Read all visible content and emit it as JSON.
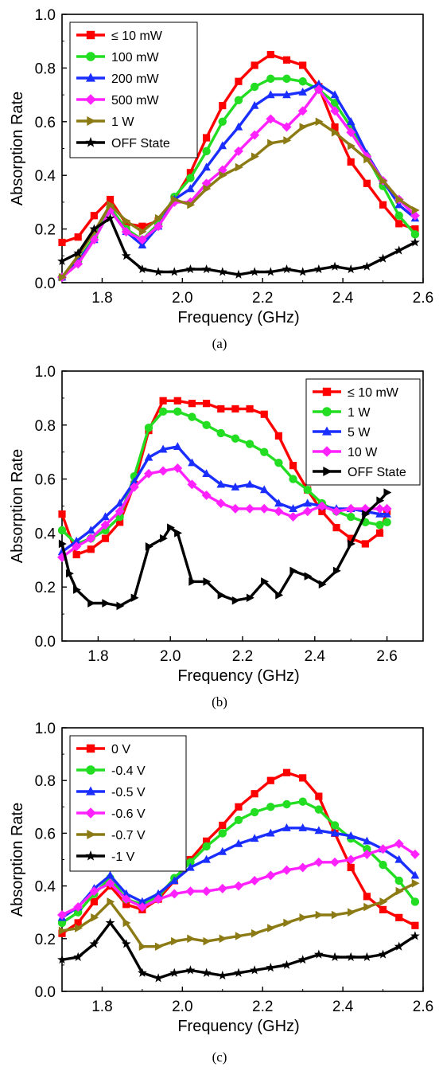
{
  "chart_data": [
    {
      "type": "line",
      "caption": "(a)",
      "xlabel": "Frequency (GHz)",
      "ylabel": "Absorption Rate",
      "xlim": [
        1.7,
        2.6
      ],
      "ylim": [
        0.0,
        1.0
      ],
      "xticks": [
        "1.8",
        "2.0",
        "2.2",
        "2.4",
        "2.6"
      ],
      "yticks": [
        "0.0",
        "0.2",
        "0.4",
        "0.6",
        "0.8",
        "1.0"
      ],
      "legend_position": "top-left",
      "series": [
        {
          "name": "≤ 10 mW",
          "color": "#ff0000",
          "marker": "square",
          "x": [
            1.7,
            1.74,
            1.78,
            1.82,
            1.86,
            1.9,
            1.94,
            1.98,
            2.02,
            2.06,
            2.1,
            2.14,
            2.18,
            2.22,
            2.26,
            2.3,
            2.34,
            2.38,
            2.42,
            2.46,
            2.5,
            2.54,
            2.58
          ],
          "y": [
            0.15,
            0.17,
            0.25,
            0.31,
            0.22,
            0.21,
            0.23,
            0.31,
            0.41,
            0.54,
            0.66,
            0.75,
            0.81,
            0.85,
            0.83,
            0.81,
            0.73,
            0.58,
            0.45,
            0.37,
            0.29,
            0.22,
            0.2
          ]
        },
        {
          "name": "100 mW",
          "color": "#22dd22",
          "marker": "circle",
          "x": [
            1.7,
            1.74,
            1.78,
            1.82,
            1.86,
            1.9,
            1.94,
            1.98,
            2.02,
            2.06,
            2.1,
            2.14,
            2.18,
            2.22,
            2.26,
            2.3,
            2.34,
            2.38,
            2.42,
            2.46,
            2.5,
            2.54,
            2.58
          ],
          "y": [
            0.02,
            0.08,
            0.17,
            0.28,
            0.2,
            0.16,
            0.22,
            0.32,
            0.39,
            0.49,
            0.6,
            0.68,
            0.73,
            0.76,
            0.76,
            0.75,
            0.72,
            0.67,
            0.58,
            0.47,
            0.36,
            0.25,
            0.18
          ]
        },
        {
          "name": "200 mW",
          "color": "#1a2eff",
          "marker": "triangle",
          "x": [
            1.7,
            1.74,
            1.78,
            1.82,
            1.86,
            1.9,
            1.94,
            1.98,
            2.02,
            2.06,
            2.1,
            2.14,
            2.18,
            2.22,
            2.26,
            2.3,
            2.34,
            2.38,
            2.42,
            2.46,
            2.5,
            2.54,
            2.58
          ],
          "y": [
            0.02,
            0.08,
            0.16,
            0.27,
            0.19,
            0.14,
            0.21,
            0.31,
            0.35,
            0.43,
            0.51,
            0.58,
            0.66,
            0.7,
            0.7,
            0.71,
            0.74,
            0.7,
            0.6,
            0.48,
            0.38,
            0.29,
            0.24
          ]
        },
        {
          "name": "500 mW",
          "color": "#ff22ff",
          "marker": "diamond",
          "x": [
            1.7,
            1.74,
            1.78,
            1.82,
            1.86,
            1.9,
            1.94,
            1.98,
            2.02,
            2.06,
            2.1,
            2.14,
            2.18,
            2.22,
            2.26,
            2.3,
            2.34,
            2.38,
            2.42,
            2.46,
            2.5,
            2.54,
            2.58
          ],
          "y": [
            0.02,
            0.07,
            0.16,
            0.27,
            0.19,
            0.16,
            0.21,
            0.3,
            0.3,
            0.37,
            0.42,
            0.49,
            0.55,
            0.61,
            0.58,
            0.64,
            0.72,
            0.64,
            0.56,
            0.47,
            0.38,
            0.31,
            0.25
          ]
        },
        {
          "name": "1 W",
          "color": "#8c7a14",
          "marker": "triangle-right",
          "x": [
            1.7,
            1.74,
            1.78,
            1.82,
            1.86,
            1.9,
            1.94,
            1.98,
            2.02,
            2.06,
            2.1,
            2.14,
            2.18,
            2.22,
            2.26,
            2.3,
            2.34,
            2.38,
            2.42,
            2.46,
            2.5,
            2.54,
            2.58
          ],
          "y": [
            0.02,
            0.1,
            0.19,
            0.29,
            0.23,
            0.19,
            0.24,
            0.31,
            0.29,
            0.35,
            0.4,
            0.43,
            0.47,
            0.52,
            0.53,
            0.58,
            0.6,
            0.56,
            0.51,
            0.46,
            0.38,
            0.31,
            0.27
          ]
        },
        {
          "name": "OFF State",
          "color": "#000000",
          "marker": "star",
          "x": [
            1.7,
            1.74,
            1.78,
            1.82,
            1.86,
            1.9,
            1.94,
            1.98,
            2.02,
            2.06,
            2.1,
            2.14,
            2.18,
            2.22,
            2.26,
            2.3,
            2.34,
            2.38,
            2.42,
            2.46,
            2.5,
            2.54,
            2.58
          ],
          "y": [
            0.08,
            0.11,
            0.2,
            0.24,
            0.1,
            0.05,
            0.04,
            0.04,
            0.05,
            0.05,
            0.04,
            0.03,
            0.04,
            0.04,
            0.05,
            0.04,
            0.05,
            0.06,
            0.05,
            0.06,
            0.09,
            0.12,
            0.15
          ]
        }
      ]
    },
    {
      "type": "line",
      "caption": "(b)",
      "xlabel": "Frequency (GHz)",
      "ylabel": "Absorption Rate",
      "xlim": [
        1.7,
        2.7
      ],
      "ylim": [
        0.0,
        1.0
      ],
      "xticks": [
        "1.8",
        "2.0",
        "2.2",
        "2.4",
        "2.6"
      ],
      "yticks": [
        "0.0",
        "0.2",
        "0.4",
        "0.6",
        "0.8",
        "1.0"
      ],
      "legend_position": "top-right",
      "series": [
        {
          "name": "≤ 10 mW",
          "color": "#ff0000",
          "marker": "square",
          "x": [
            1.7,
            1.74,
            1.78,
            1.82,
            1.86,
            1.9,
            1.94,
            1.98,
            2.02,
            2.06,
            2.1,
            2.14,
            2.18,
            2.22,
            2.26,
            2.3,
            2.34,
            2.38,
            2.42,
            2.46,
            2.5,
            2.54,
            2.58,
            2.6
          ],
          "y": [
            0.47,
            0.32,
            0.34,
            0.38,
            0.44,
            0.58,
            0.78,
            0.89,
            0.89,
            0.88,
            0.88,
            0.86,
            0.86,
            0.86,
            0.84,
            0.76,
            0.65,
            0.56,
            0.48,
            0.42,
            0.38,
            0.36,
            0.4,
            0.48
          ]
        },
        {
          "name": "1 W",
          "color": "#22dd22",
          "marker": "circle",
          "x": [
            1.7,
            1.74,
            1.78,
            1.82,
            1.86,
            1.9,
            1.94,
            1.98,
            2.02,
            2.06,
            2.1,
            2.14,
            2.18,
            2.22,
            2.26,
            2.3,
            2.34,
            2.38,
            2.42,
            2.46,
            2.5,
            2.54,
            2.58,
            2.6
          ],
          "y": [
            0.41,
            0.36,
            0.38,
            0.41,
            0.46,
            0.61,
            0.79,
            0.85,
            0.85,
            0.83,
            0.8,
            0.77,
            0.75,
            0.73,
            0.7,
            0.66,
            0.6,
            0.56,
            0.51,
            0.48,
            0.46,
            0.44,
            0.43,
            0.44
          ]
        },
        {
          "name": "5 W",
          "color": "#1a2eff",
          "marker": "triangle",
          "x": [
            1.7,
            1.74,
            1.78,
            1.82,
            1.86,
            1.9,
            1.94,
            1.98,
            2.02,
            2.06,
            2.1,
            2.14,
            2.18,
            2.22,
            2.26,
            2.3,
            2.34,
            2.38,
            2.42,
            2.46,
            2.5,
            2.54,
            2.58,
            2.6
          ],
          "y": [
            0.33,
            0.37,
            0.41,
            0.46,
            0.51,
            0.59,
            0.68,
            0.71,
            0.72,
            0.66,
            0.62,
            0.58,
            0.57,
            0.58,
            0.56,
            0.51,
            0.49,
            0.51,
            0.5,
            0.49,
            0.49,
            0.48,
            0.47,
            0.47
          ]
        },
        {
          "name": "10 W",
          "color": "#ff22ff",
          "marker": "diamond",
          "x": [
            1.7,
            1.74,
            1.78,
            1.82,
            1.86,
            1.9,
            1.94,
            1.98,
            2.02,
            2.06,
            2.1,
            2.14,
            2.18,
            2.22,
            2.26,
            2.3,
            2.34,
            2.38,
            2.42,
            2.46,
            2.5,
            2.54,
            2.58,
            2.6
          ],
          "y": [
            0.31,
            0.35,
            0.38,
            0.43,
            0.48,
            0.57,
            0.62,
            0.63,
            0.64,
            0.58,
            0.54,
            0.51,
            0.49,
            0.49,
            0.49,
            0.48,
            0.46,
            0.48,
            0.5,
            0.48,
            0.49,
            0.49,
            0.49,
            0.49
          ]
        },
        {
          "name": "OFF State",
          "color": "#000000",
          "marker": "triangle-right",
          "x": [
            1.7,
            1.72,
            1.74,
            1.78,
            1.82,
            1.86,
            1.9,
            1.94,
            1.98,
            2.0,
            2.02,
            2.06,
            2.1,
            2.14,
            2.18,
            2.22,
            2.26,
            2.3,
            2.34,
            2.38,
            2.42,
            2.46,
            2.5,
            2.54,
            2.58,
            2.6
          ],
          "y": [
            0.36,
            0.25,
            0.19,
            0.14,
            0.14,
            0.13,
            0.16,
            0.35,
            0.38,
            0.42,
            0.4,
            0.22,
            0.22,
            0.17,
            0.15,
            0.16,
            0.22,
            0.17,
            0.26,
            0.24,
            0.21,
            0.26,
            0.36,
            0.47,
            0.52,
            0.55
          ]
        }
      ]
    },
    {
      "type": "line",
      "caption": "(c)",
      "xlabel": "Frequency (GHz)",
      "ylabel": "Absorption Rate",
      "xlim": [
        1.7,
        2.6
      ],
      "ylim": [
        0.0,
        1.0
      ],
      "xticks": [
        "1.8",
        "2.0",
        "2.2",
        "2.4",
        "2.6"
      ],
      "yticks": [
        "0.0",
        "0.2",
        "0.4",
        "0.6",
        "0.8",
        "1.0"
      ],
      "legend_position": "top-left",
      "series": [
        {
          "name": "0 V",
          "color": "#ff0000",
          "marker": "square",
          "x": [
            1.7,
            1.74,
            1.78,
            1.82,
            1.86,
            1.9,
            1.94,
            1.98,
            2.02,
            2.06,
            2.1,
            2.14,
            2.18,
            2.22,
            2.26,
            2.3,
            2.34,
            2.38,
            2.42,
            2.46,
            2.5,
            2.54,
            2.58
          ],
          "y": [
            0.22,
            0.26,
            0.34,
            0.4,
            0.33,
            0.31,
            0.35,
            0.42,
            0.5,
            0.57,
            0.63,
            0.7,
            0.75,
            0.8,
            0.83,
            0.81,
            0.74,
            0.6,
            0.47,
            0.36,
            0.31,
            0.28,
            0.25
          ]
        },
        {
          "name": "-0.4 V",
          "color": "#22dd22",
          "marker": "circle",
          "x": [
            1.7,
            1.74,
            1.78,
            1.82,
            1.86,
            1.9,
            1.94,
            1.98,
            2.02,
            2.06,
            2.1,
            2.14,
            2.18,
            2.22,
            2.26,
            2.3,
            2.34,
            2.38,
            2.42,
            2.46,
            2.5,
            2.54,
            2.58
          ],
          "y": [
            0.26,
            0.3,
            0.37,
            0.43,
            0.35,
            0.33,
            0.36,
            0.43,
            0.49,
            0.55,
            0.6,
            0.65,
            0.68,
            0.7,
            0.71,
            0.72,
            0.69,
            0.63,
            0.58,
            0.54,
            0.48,
            0.42,
            0.34
          ]
        },
        {
          "name": "-0.5 V",
          "color": "#1a2eff",
          "marker": "triangle",
          "x": [
            1.7,
            1.74,
            1.78,
            1.82,
            1.86,
            1.9,
            1.94,
            1.98,
            2.02,
            2.06,
            2.1,
            2.14,
            2.18,
            2.22,
            2.26,
            2.3,
            2.34,
            2.38,
            2.42,
            2.46,
            2.5,
            2.54,
            2.58
          ],
          "y": [
            0.28,
            0.32,
            0.39,
            0.44,
            0.37,
            0.34,
            0.37,
            0.42,
            0.47,
            0.5,
            0.53,
            0.56,
            0.58,
            0.6,
            0.62,
            0.62,
            0.61,
            0.6,
            0.59,
            0.57,
            0.54,
            0.5,
            0.44
          ]
        },
        {
          "name": "-0.6 V",
          "color": "#ff22ff",
          "marker": "diamond",
          "x": [
            1.7,
            1.74,
            1.78,
            1.82,
            1.86,
            1.9,
            1.94,
            1.98,
            2.02,
            2.06,
            2.1,
            2.14,
            2.18,
            2.22,
            2.26,
            2.3,
            2.34,
            2.38,
            2.42,
            2.46,
            2.5,
            2.54,
            2.58
          ],
          "y": [
            0.29,
            0.32,
            0.38,
            0.41,
            0.35,
            0.32,
            0.35,
            0.37,
            0.38,
            0.38,
            0.39,
            0.4,
            0.42,
            0.44,
            0.46,
            0.47,
            0.49,
            0.49,
            0.5,
            0.52,
            0.54,
            0.56,
            0.52
          ]
        },
        {
          "name": "-0.7 V",
          "color": "#8c7a14",
          "marker": "triangle-right",
          "x": [
            1.7,
            1.74,
            1.78,
            1.82,
            1.86,
            1.9,
            1.94,
            1.98,
            2.02,
            2.06,
            2.1,
            2.14,
            2.18,
            2.22,
            2.26,
            2.3,
            2.34,
            2.38,
            2.42,
            2.46,
            2.5,
            2.54,
            2.58
          ],
          "y": [
            0.23,
            0.24,
            0.28,
            0.34,
            0.26,
            0.17,
            0.17,
            0.19,
            0.2,
            0.19,
            0.2,
            0.21,
            0.22,
            0.24,
            0.26,
            0.28,
            0.29,
            0.29,
            0.3,
            0.32,
            0.34,
            0.38,
            0.41
          ]
        },
        {
          "name": "-1 V",
          "color": "#000000",
          "marker": "star",
          "x": [
            1.7,
            1.74,
            1.78,
            1.82,
            1.86,
            1.9,
            1.94,
            1.98,
            2.02,
            2.06,
            2.1,
            2.14,
            2.18,
            2.22,
            2.26,
            2.3,
            2.34,
            2.38,
            2.42,
            2.46,
            2.5,
            2.54,
            2.58
          ],
          "y": [
            0.12,
            0.13,
            0.18,
            0.26,
            0.18,
            0.07,
            0.05,
            0.07,
            0.08,
            0.07,
            0.06,
            0.07,
            0.08,
            0.09,
            0.1,
            0.12,
            0.14,
            0.13,
            0.13,
            0.13,
            0.14,
            0.17,
            0.21
          ]
        }
      ]
    }
  ]
}
